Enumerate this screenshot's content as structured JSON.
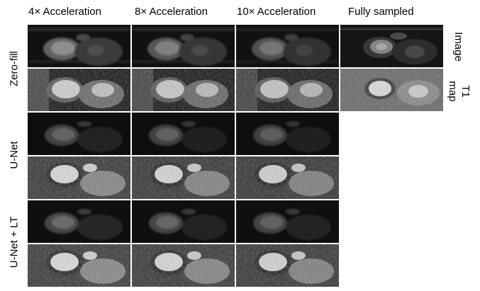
{
  "columns": [
    "4× Acceleration",
    "8× Acceleration",
    "10× Acceleration",
    "Fully sampled"
  ],
  "row_groups": [
    "Zero-fill",
    "U-Net",
    "U-Net + LT"
  ],
  "side_labels": {
    "image": "Image",
    "t1": "T1",
    "map": "map"
  },
  "panel_types": [
    "image",
    "t1-map"
  ]
}
